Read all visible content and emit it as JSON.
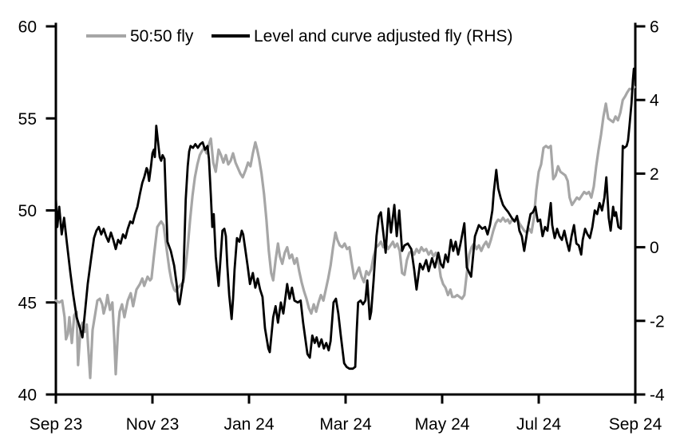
{
  "chart_data": {
    "type": "line",
    "title": "",
    "x_axis": {
      "label": "",
      "unit": "months since Sep 2023",
      "range": [
        0,
        12
      ],
      "tick_positions": [
        0,
        2,
        4,
        6,
        8,
        10,
        12
      ],
      "tick_labels": [
        "Sep 23",
        "Nov 23",
        "Jan 24",
        "Mar 24",
        "May 24",
        "Jul 24",
        "Sep 24"
      ]
    },
    "left_axis": {
      "range": [
        40,
        60
      ],
      "ticks": [
        60,
        55,
        50,
        45,
        40
      ],
      "tick_labels": [
        "60",
        "55",
        "50",
        "45",
        "40"
      ]
    },
    "right_axis": {
      "range": [
        -4,
        6
      ],
      "ticks": [
        6,
        4,
        2,
        0,
        -2,
        -4
      ],
      "tick_labels": [
        "6",
        "4",
        "2",
        "0",
        "-2",
        "-4"
      ]
    },
    "grid": false,
    "legend_position": "top",
    "legend": [
      {
        "label": "50:50 fly",
        "color": "#a6a6a6"
      },
      {
        "label": "Level and curve adjusted fly (RHS)",
        "color": "#000000"
      }
    ],
    "series": [
      {
        "name": "50:50 fly",
        "axis": "left",
        "color": "#a6a6a6",
        "width": 3.2,
        "t": [
          0.0,
          0.07,
          0.13,
          0.18,
          0.21,
          0.25,
          0.28,
          0.33,
          0.38,
          0.43,
          0.46,
          0.51,
          0.55,
          0.6,
          0.64,
          0.71,
          0.76,
          0.81,
          0.86,
          0.91,
          0.96,
          0.99,
          1.04,
          1.07,
          1.12,
          1.17,
          1.21,
          1.24,
          1.29,
          1.32,
          1.37,
          1.42,
          1.49,
          1.55,
          1.6,
          1.67,
          1.74,
          1.79,
          1.83,
          1.9,
          1.95,
          1.98,
          2.03,
          2.1,
          2.15,
          2.18,
          2.23,
          2.3,
          2.35,
          2.4,
          2.45,
          2.48,
          2.53,
          2.6,
          2.64,
          2.69,
          2.73,
          2.78,
          2.83,
          2.88,
          2.93,
          2.98,
          3.02,
          3.07,
          3.12,
          3.17,
          3.21,
          3.26,
          3.31,
          3.37,
          3.42,
          3.47,
          3.52,
          3.57,
          3.62,
          3.67,
          3.72,
          3.77,
          3.82,
          3.87,
          3.93,
          3.98,
          4.03,
          4.08,
          4.13,
          4.17,
          4.21,
          4.26,
          4.31,
          4.36,
          4.41,
          4.46,
          4.5,
          4.55,
          4.6,
          4.64,
          4.69,
          4.74,
          4.79,
          4.84,
          4.89,
          4.94,
          4.99,
          5.04,
          5.09,
          5.14,
          5.19,
          5.24,
          5.29,
          5.34,
          5.39,
          5.44,
          5.49,
          5.54,
          5.59,
          5.64,
          5.69,
          5.74,
          5.79,
          5.83,
          5.88,
          5.93,
          5.98,
          6.03,
          6.08,
          6.13,
          6.18,
          6.23,
          6.28,
          6.33,
          6.38,
          6.43,
          6.48,
          6.53,
          6.58,
          6.63,
          6.68,
          6.73,
          6.78,
          6.83,
          6.88,
          6.93,
          6.98,
          7.02,
          7.07,
          7.12,
          7.17,
          7.22,
          7.27,
          7.32,
          7.37,
          7.42,
          7.47,
          7.52,
          7.57,
          7.62,
          7.67,
          7.72,
          7.77,
          7.82,
          7.87,
          7.92,
          7.97,
          8.02,
          8.07,
          8.12,
          8.17,
          8.21,
          8.26,
          8.31,
          8.36,
          8.41,
          8.46,
          8.51,
          8.56,
          8.61,
          8.66,
          8.71,
          8.76,
          8.81,
          8.86,
          8.91,
          8.96,
          9.01,
          9.06,
          9.11,
          9.16,
          9.21,
          9.26,
          9.31,
          9.36,
          9.4,
          9.45,
          9.5,
          9.55,
          9.6,
          9.65,
          9.7,
          9.75,
          9.8,
          9.85,
          9.9,
          9.95,
          10.0,
          10.05,
          10.1,
          10.15,
          10.2,
          10.25,
          10.3,
          10.35,
          10.4,
          10.45,
          10.5,
          10.55,
          10.6,
          10.64,
          10.69,
          10.74,
          10.79,
          10.84,
          10.89,
          10.94,
          10.99,
          11.04,
          11.09,
          11.14,
          11.19,
          11.24,
          11.29,
          11.34,
          11.39,
          11.44,
          11.49,
          11.54,
          11.59,
          11.64,
          11.69,
          11.74,
          11.79,
          11.83,
          11.88,
          11.93,
          11.98
        ],
        "v": [
          45.1,
          45.0,
          45.1,
          44.2,
          43.0,
          43.3,
          44.2,
          42.8,
          44.3,
          44.5,
          41.6,
          43.6,
          43.9,
          43.4,
          43.8,
          40.9,
          43.5,
          44.3,
          45.1,
          45.2,
          44.9,
          44.4,
          44.9,
          45.4,
          44.6,
          45.0,
          43.0,
          41.1,
          43.6,
          44.5,
          44.9,
          44.2,
          45.1,
          45.5,
          44.8,
          45.7,
          46.0,
          46.3,
          45.9,
          46.4,
          46.2,
          46.3,
          47.5,
          49.1,
          49.3,
          49.4,
          49.2,
          47.8,
          46.8,
          46.1,
          45.7,
          45.6,
          45.8,
          46.0,
          46.1,
          47.0,
          48.0,
          49.5,
          50.8,
          51.8,
          52.5,
          53.0,
          53.2,
          53.4,
          53.1,
          53.6,
          53.9,
          52.6,
          52.1,
          53.3,
          53.0,
          52.6,
          53.0,
          52.5,
          52.7,
          53.1,
          52.6,
          52.3,
          52.0,
          51.8,
          52.2,
          52.6,
          52.4,
          53.1,
          53.7,
          53.3,
          52.8,
          52.0,
          50.9,
          49.5,
          47.8,
          46.6,
          46.2,
          47.3,
          48.2,
          47.5,
          47.1,
          47.7,
          48.0,
          47.4,
          47.6,
          47.1,
          47.4,
          46.7,
          46.1,
          45.6,
          45.2,
          44.7,
          44.4,
          44.9,
          44.5,
          45.0,
          45.4,
          45.1,
          45.7,
          46.3,
          47.0,
          48.0,
          48.8,
          48.4,
          48.1,
          48.0,
          48.2,
          47.9,
          48.0,
          47.1,
          46.3,
          46.6,
          46.9,
          46.4,
          46.1,
          46.7,
          46.5,
          46.8,
          47.5,
          48.0,
          48.1,
          48.3,
          48.0,
          48.2,
          47.9,
          48.1,
          48.3,
          48.0,
          48.2,
          47.8,
          46.6,
          46.5,
          47.3,
          47.7,
          47.8,
          47.6,
          47.9,
          47.7,
          48.0,
          47.8,
          47.9,
          47.6,
          47.8,
          47.5,
          47.7,
          47.3,
          46.4,
          46.0,
          45.8,
          45.4,
          45.7,
          45.3,
          45.3,
          45.4,
          45.3,
          45.2,
          45.4,
          46.6,
          47.6,
          48.0,
          48.2,
          47.9,
          48.1,
          47.8,
          48.1,
          48.3,
          48.0,
          48.4,
          48.9,
          49.3,
          49.5,
          49.4,
          49.6,
          49.4,
          49.5,
          49.3,
          49.5,
          49.4,
          49.6,
          49.3,
          49.1,
          48.9,
          48.8,
          49.0,
          48.8,
          49.6,
          51.1,
          52.1,
          52.5,
          53.4,
          53.5,
          53.4,
          53.5,
          51.7,
          51.9,
          52.4,
          52.1,
          52.0,
          51.9,
          51.6,
          50.7,
          50.3,
          50.5,
          50.7,
          50.6,
          50.8,
          51.0,
          50.9,
          51.0,
          50.7,
          51.3,
          52.4,
          53.3,
          54.1,
          55.1,
          55.8,
          55.0,
          54.9,
          54.8,
          55.1,
          54.9,
          55.3,
          56.0,
          56.2,
          56.4,
          56.6,
          56.6,
          56.7
        ]
      },
      {
        "name": "Level and curve adjusted fly (RHS)",
        "axis": "right",
        "color": "#000000",
        "width": 2.8,
        "t": [
          0.0,
          0.03,
          0.07,
          0.12,
          0.17,
          0.23,
          0.3,
          0.36,
          0.43,
          0.5,
          0.55,
          0.6,
          0.66,
          0.73,
          0.79,
          0.84,
          0.89,
          0.94,
          0.99,
          1.04,
          1.09,
          1.14,
          1.19,
          1.24,
          1.29,
          1.34,
          1.39,
          1.44,
          1.49,
          1.54,
          1.59,
          1.64,
          1.69,
          1.74,
          1.79,
          1.83,
          1.88,
          1.9,
          1.93,
          1.97,
          2.0,
          2.03,
          2.05,
          2.08,
          2.12,
          2.15,
          2.18,
          2.21,
          2.25,
          2.28,
          2.31,
          2.38,
          2.45,
          2.5,
          2.53,
          2.56,
          2.6,
          2.64,
          2.69,
          2.73,
          2.76,
          2.79,
          2.84,
          2.89,
          2.94,
          2.99,
          3.04,
          3.09,
          3.14,
          3.17,
          3.21,
          3.24,
          3.27,
          3.31,
          3.37,
          3.4,
          3.45,
          3.49,
          3.52,
          3.55,
          3.59,
          3.64,
          3.67,
          3.7,
          3.75,
          3.8,
          3.85,
          3.88,
          3.97,
          4.02,
          4.08,
          4.13,
          4.18,
          4.23,
          4.28,
          4.33,
          4.4,
          4.43,
          4.5,
          4.55,
          4.6,
          4.66,
          4.71,
          4.79,
          4.84,
          4.89,
          4.94,
          5.01,
          5.07,
          5.12,
          5.21,
          5.26,
          5.31,
          5.36,
          5.4,
          5.45,
          5.5,
          5.55,
          5.6,
          5.65,
          5.69,
          5.75,
          5.8,
          5.85,
          5.9,
          5.97,
          6.02,
          6.08,
          6.15,
          6.2,
          6.23,
          6.26,
          6.31,
          6.36,
          6.41,
          6.45,
          6.5,
          6.53,
          6.58,
          6.64,
          6.69,
          6.73,
          6.78,
          6.83,
          6.89,
          6.94,
          7.01,
          7.06,
          7.11,
          7.17,
          7.22,
          7.29,
          7.36,
          7.42,
          7.47,
          7.54,
          7.6,
          7.67,
          7.72,
          7.79,
          7.85,
          7.92,
          7.97,
          8.02,
          8.07,
          8.12,
          8.18,
          8.23,
          8.28,
          8.33,
          8.38,
          8.46,
          8.51,
          8.6,
          8.68,
          8.76,
          8.83,
          8.89,
          8.94,
          8.99,
          9.04,
          9.07,
          9.12,
          9.16,
          9.21,
          9.26,
          9.31,
          9.37,
          9.44,
          9.5,
          9.55,
          9.6,
          9.65,
          9.7,
          9.77,
          9.83,
          9.88,
          9.93,
          9.98,
          10.03,
          10.08,
          10.13,
          10.18,
          10.25,
          10.28,
          10.33,
          10.38,
          10.43,
          10.48,
          10.53,
          10.58,
          10.63,
          10.68,
          10.73,
          10.78,
          10.83,
          10.88,
          10.91,
          10.96,
          11.01,
          11.06,
          11.11,
          11.16,
          11.21,
          11.26,
          11.31,
          11.36,
          11.4,
          11.45,
          11.49,
          11.54,
          11.57,
          11.6,
          11.65,
          11.7,
          11.74,
          11.77,
          11.82,
          11.85,
          11.88,
          11.92,
          11.95,
          11.97,
          11.98
        ],
        "v": [
          1.35,
          0.55,
          1.1,
          0.35,
          0.8,
          0.1,
          -0.7,
          -1.3,
          -1.9,
          -2.2,
          -2.45,
          -1.8,
          -1.0,
          -0.3,
          0.25,
          0.45,
          0.55,
          0.35,
          0.5,
          0.3,
          0.15,
          0.4,
          0.2,
          -0.05,
          0.2,
          0.1,
          0.35,
          0.25,
          0.5,
          0.7,
          0.65,
          0.9,
          1.1,
          1.45,
          1.75,
          1.9,
          2.15,
          2.1,
          1.8,
          2.2,
          2.55,
          2.65,
          2.45,
          3.3,
          2.8,
          2.45,
          2.35,
          2.5,
          2.4,
          1.25,
          0.15,
          -0.1,
          -0.5,
          -1.0,
          -1.45,
          -1.55,
          -1.2,
          -0.85,
          1.3,
          2.2,
          2.6,
          2.75,
          2.7,
          2.8,
          2.7,
          2.8,
          2.85,
          2.65,
          2.75,
          2.4,
          1.4,
          0.55,
          0.9,
          -0.25,
          -1.05,
          -0.5,
          0.45,
          0.5,
          0.3,
          -0.5,
          -1.3,
          -1.95,
          -1.4,
          -0.6,
          0.25,
          0.15,
          0.45,
          0.35,
          -0.5,
          -1.0,
          -0.7,
          -1.1,
          -0.85,
          -1.15,
          -1.35,
          -2.2,
          -2.75,
          -2.85,
          -1.9,
          -1.6,
          -2.05,
          -1.5,
          -1.8,
          -1.0,
          -1.4,
          -1.1,
          -1.45,
          -1.5,
          -1.45,
          -2.05,
          -2.9,
          -3.0,
          -2.4,
          -2.6,
          -2.45,
          -2.7,
          -2.5,
          -2.75,
          -2.6,
          -2.8,
          -2.55,
          -1.5,
          -1.4,
          -1.8,
          -2.4,
          -3.15,
          -3.25,
          -3.3,
          -3.3,
          -3.25,
          -2.3,
          -1.5,
          -1.45,
          -1.55,
          -1.45,
          -0.9,
          -1.95,
          -1.75,
          -0.9,
          0.3,
          0.85,
          0.95,
          0.4,
          -0.15,
          1.05,
          0.4,
          1.15,
          0.3,
          1.0,
          -0.1,
          0.05,
          0.1,
          -0.05,
          -0.6,
          -1.15,
          -0.45,
          -0.6,
          -0.35,
          -0.65,
          -0.3,
          -0.55,
          -0.15,
          -0.45,
          -0.55,
          -0.2,
          -0.4,
          0.2,
          -0.1,
          0.15,
          -0.2,
          0.1,
          0.65,
          -0.55,
          -0.8,
          0.3,
          0.6,
          0.5,
          0.55,
          0.35,
          0.6,
          1.0,
          1.5,
          2.1,
          1.6,
          1.35,
          1.15,
          1.05,
          0.95,
          0.8,
          0.7,
          0.85,
          0.45,
          0.3,
          -0.1,
          0.5,
          0.9,
          0.95,
          1.1,
          0.7,
          0.75,
          0.3,
          0.55,
          0.45,
          1.2,
          0.6,
          0.25,
          0.5,
          0.3,
          0.2,
          0.45,
          0.15,
          -0.1,
          0.3,
          0.6,
          0.1,
          0.05,
          -0.2,
          0.2,
          0.5,
          0.35,
          0.25,
          0.55,
          1.0,
          0.9,
          1.2,
          1.0,
          1.35,
          1.9,
          0.8,
          0.45,
          1.1,
          0.85,
          0.95,
          0.55,
          0.5,
          2.75,
          2.7,
          2.75,
          2.9,
          3.3,
          3.9,
          4.55,
          4.85,
          4.6
        ]
      }
    ]
  }
}
